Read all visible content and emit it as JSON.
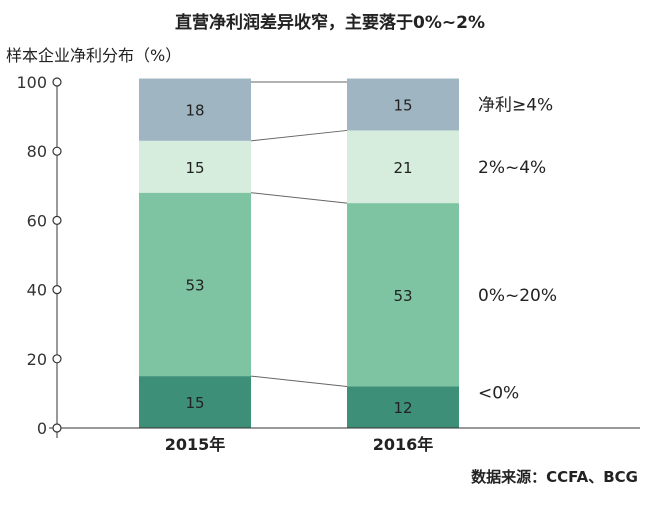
{
  "chart_data": {
    "type": "bar",
    "stacked": true,
    "title": "直营净利润差异收窄，主要落于0%~2%",
    "ylabel": "样本企业净利分布（%）",
    "ylim": [
      0,
      100
    ],
    "yticks": [
      0,
      20,
      40,
      60,
      80,
      100
    ],
    "categories": [
      "2015年",
      "2016年"
    ],
    "series": [
      {
        "name": "<0%",
        "values": [
          15,
          12
        ],
        "color": "#3d8f77"
      },
      {
        "name": "0%~20%",
        "values": [
          53,
          53
        ],
        "color": "#7ec4a2"
      },
      {
        "name": "2%~4%",
        "values": [
          15,
          21
        ],
        "color": "#d6ecdd"
      },
      {
        "name": "净利≥4%",
        "values": [
          18,
          15
        ],
        "color": "#9fb6c2"
      }
    ],
    "legend_position": "right, labels beside stacked segments",
    "grid": false
  },
  "source_text": "数据来源：CCFA、BCG"
}
